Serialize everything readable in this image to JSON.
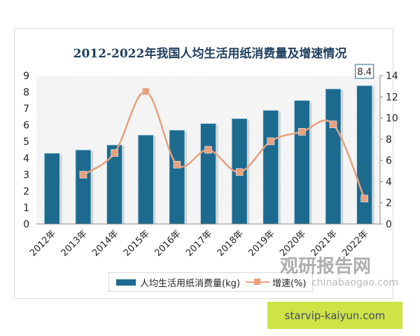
{
  "chart_data": {
    "type": "bar",
    "title": "2012-2022年我国人均生活用纸消费量及增速情况",
    "categories": [
      "2012年",
      "2013年",
      "2014年",
      "2015年",
      "2016年",
      "2017年",
      "2018年",
      "2019年",
      "2020年",
      "2021年",
      "2022年"
    ],
    "series": [
      {
        "name": "人均生活用纸消费量(kg)",
        "type": "bar",
        "axis": "left",
        "color": "#1d6a8f",
        "values": [
          4.3,
          4.5,
          4.8,
          5.4,
          5.7,
          6.1,
          6.4,
          6.9,
          7.5,
          8.2,
          8.4
        ]
      },
      {
        "name": "增速(%)",
        "type": "line",
        "axis": "right",
        "color": "#e8a07e",
        "values": [
          null,
          4.65,
          6.7,
          12.5,
          5.6,
          7.0,
          4.9,
          7.8,
          8.7,
          9.4,
          2.4
        ]
      }
    ],
    "ylim": [
      0,
      9
    ],
    "yticks": [
      "0",
      "1",
      "2",
      "3",
      "4",
      "5",
      "6",
      "7",
      "8",
      "9"
    ],
    "y2lim": [
      0,
      14
    ],
    "y2ticks": [
      "0",
      "2",
      "4",
      "6",
      "8",
      "10",
      "12",
      "14"
    ],
    "data_label": "8.4",
    "legend": "bottom",
    "grid": false
  },
  "watermark": {
    "name": "观研报告网",
    "url": "chinabaogao.com"
  },
  "banner": "starvip-kaiyun.com"
}
